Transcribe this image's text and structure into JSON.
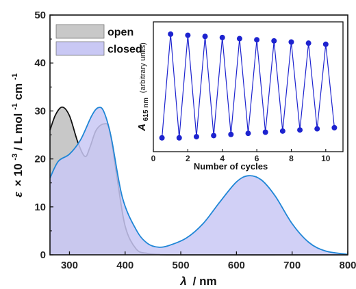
{
  "chart_data": [
    {
      "type": "area",
      "x_prefix": "λ",
      "x_unit": "/ nm",
      "y_prefix": "ε",
      "y_unit_parts": [
        "× 10",
        "-3",
        "/ L mol",
        "-1",
        " cm",
        "-1"
      ],
      "xlim": [
        265,
        800
      ],
      "ylim": [
        0,
        50
      ],
      "xticks": [
        300,
        400,
        500,
        600,
        700,
        800
      ],
      "yticks": [
        0,
        10,
        20,
        30,
        40,
        50
      ],
      "legend_position": "top-left",
      "series": [
        {
          "name": "open",
          "fill": "#c8c8c8",
          "line": "#111111",
          "points": [
            [
              265,
              26
            ],
            [
              275,
              29.2
            ],
            [
              287,
              30.8
            ],
            [
              300,
              29
            ],
            [
              315,
              23.5
            ],
            [
              328,
              20.5
            ],
            [
              337,
              22.5
            ],
            [
              348,
              26
            ],
            [
              362,
              27.3
            ],
            [
              372,
              26
            ],
            [
              385,
              16.5
            ],
            [
              400,
              6
            ],
            [
              420,
              1.2
            ],
            [
              440,
              0.3
            ],
            [
              460,
              0.1
            ],
            [
              500,
              0
            ],
            [
              800,
              0
            ]
          ]
        },
        {
          "name": "closed",
          "fill": "#c9c8f4",
          "line": "#1f86d6",
          "points": [
            [
              265,
              16
            ],
            [
              280,
              19.5
            ],
            [
              300,
              21
            ],
            [
              320,
              24
            ],
            [
              340,
              29
            ],
            [
              352,
              30.7
            ],
            [
              362,
              29.8
            ],
            [
              375,
              24.5
            ],
            [
              395,
              12
            ],
            [
              420,
              5.2
            ],
            [
              440,
              2.4
            ],
            [
              460,
              1.6
            ],
            [
              480,
              2
            ],
            [
              510,
              3.5
            ],
            [
              540,
              6.5
            ],
            [
              570,
              11
            ],
            [
              600,
              15.2
            ],
            [
              622,
              16.5
            ],
            [
              645,
              15.6
            ],
            [
              670,
              12.2
            ],
            [
              700,
              6.5
            ],
            [
              730,
              2.6
            ],
            [
              760,
              0.8
            ],
            [
              800,
              0.1
            ]
          ]
        }
      ]
    },
    {
      "type": "line",
      "xlabel": "Number of cycles",
      "y_prefix": "A",
      "y_sub": "615 nm",
      "y_suffix": "(arbitrary units)",
      "xlim": [
        0,
        11
      ],
      "ylim": [
        0,
        1
      ],
      "xticks": [
        0,
        2,
        4,
        6,
        8,
        10
      ],
      "color": "#1d23cf",
      "points": [
        [
          0.5,
          0.05
        ],
        [
          1,
          0.97
        ],
        [
          1.5,
          0.05
        ],
        [
          2,
          0.96
        ],
        [
          2.5,
          0.06
        ],
        [
          3,
          0.95
        ],
        [
          3.5,
          0.07
        ],
        [
          4,
          0.94
        ],
        [
          4.5,
          0.08
        ],
        [
          5,
          0.93
        ],
        [
          5.5,
          0.09
        ],
        [
          6,
          0.92
        ],
        [
          6.5,
          0.1
        ],
        [
          7,
          0.91
        ],
        [
          7.5,
          0.11
        ],
        [
          8,
          0.9
        ],
        [
          8.5,
          0.12
        ],
        [
          9,
          0.89
        ],
        [
          9.5,
          0.13
        ],
        [
          10,
          0.88
        ],
        [
          10.5,
          0.14
        ]
      ]
    }
  ]
}
